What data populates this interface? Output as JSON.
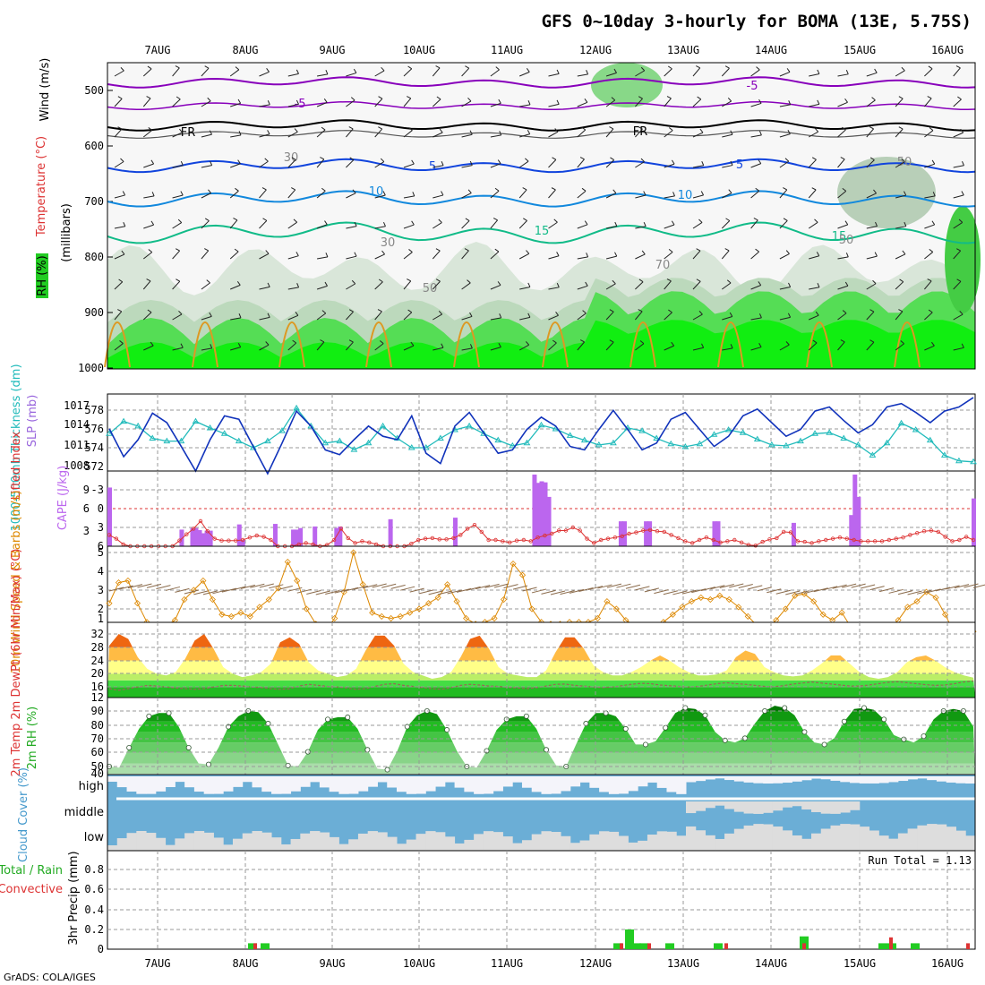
{
  "chart_data": {
    "type": "meteogram",
    "title": "GFS 0~10day 3-hourly for BOMA (13E, 5.75S)",
    "footer": "GrADS: COLA/IGES",
    "date_labels": [
      "7AUG",
      "8AUG",
      "9AUG",
      "10AUG",
      "11AUG",
      "12AUG",
      "13AUG",
      "14AUG",
      "15AUG",
      "16AUG"
    ],
    "colors": {
      "green": "#22cc22",
      "purple": "#bb66ee",
      "teal": "#22bbbb",
      "blue": "#1133bb",
      "red": "#dd3333",
      "orange": "#dd8800",
      "cloud_blue": "#6baed6",
      "cloud_gray": "#dddddd",
      "cloud_white": "#f4f4fa"
    },
    "panels": {
      "upper_air": {
        "ylabel_wind": "Wind (m/s)",
        "ylabel_temp": "Temperature (°C)",
        "ylabel_rh": "RH (%)",
        "ylabel_p": "(millibars)",
        "yticks": [
          "500",
          "600",
          "700",
          "800",
          "900",
          "1000"
        ],
        "contour_labels": [
          "-5",
          "-5",
          "FR",
          "FR",
          "5",
          "5",
          "10",
          "10",
          "15",
          "15",
          "30",
          "50",
          "50",
          "50",
          "70",
          "30"
        ]
      },
      "thickness_slp": {
        "ylabel_left": "1000-500mb Thickness (dm)",
        "ylabel_right": "SLP (mb)",
        "left_ticks": [
          "578",
          "576",
          "574",
          "572"
        ],
        "right_ticks": [
          "1017",
          "1014",
          "1011",
          "1008"
        ],
        "thickness": [
          575.5,
          576.8,
          576.3,
          575.0,
          574.7,
          574.7,
          576.8,
          576.1,
          575.5,
          574.7,
          574.0,
          574.7,
          575.8,
          578.2,
          576.3,
          574.5,
          574.7,
          573.8,
          574.5,
          576.3,
          575.0,
          574.0,
          574.0,
          575.0,
          575.9,
          576.3,
          575.5,
          574.8,
          574.2,
          574.5,
          576.4,
          576.0,
          575.3,
          574.8,
          574.3,
          574.5,
          576.1,
          575.8,
          575.0,
          574.4,
          574.1,
          574.4,
          575.4,
          575.9,
          575.6,
          574.9,
          574.3,
          574.2,
          574.7,
          575.5,
          575.6,
          575.0,
          574.3,
          573.2,
          574.5,
          576.6,
          575.9,
          574.8,
          573.2,
          572.6,
          572.5
        ],
        "slp": [
          1013.6,
          1009.5,
          1012.0,
          1015.9,
          1014.5,
          1011.0,
          1007.4,
          1012.0,
          1015.5,
          1015.0,
          1011.0,
          1007.0,
          1011.5,
          1016.2,
          1014.0,
          1010.5,
          1009.8,
          1012.0,
          1014.0,
          1012.5,
          1012.0,
          1015.5,
          1010.0,
          1008.5,
          1014.0,
          1016.0,
          1013.0,
          1010.0,
          1010.5,
          1013.5,
          1015.3,
          1014.0,
          1011.0,
          1010.5,
          1013.5,
          1016.3,
          1013.5,
          1010.5,
          1011.5,
          1015.0,
          1016.0,
          1013.5,
          1011.0,
          1012.5,
          1015.5,
          1016.5,
          1014.5,
          1012.5,
          1013.5,
          1016.2,
          1016.8,
          1014.8,
          1013.0,
          1014.2,
          1016.8,
          1017.3,
          1016.0,
          1014.5,
          1016.2,
          1016.8,
          1018.2
        ]
      },
      "cape_li": {
        "ylabel_left": "Lifted Index",
        "ylabel_right": "CAPE (J/kg)",
        "left_ticks": [
          "-3",
          "0",
          "3",
          "6"
        ],
        "right_ticks": [
          "9",
          "6",
          "3"
        ],
        "li_zero_line": 0,
        "cape_bars": [
          11.3,
          0,
          0,
          0,
          0,
          0,
          0,
          0,
          0,
          0,
          0,
          0,
          0,
          0,
          0,
          0,
          0,
          0,
          0,
          0,
          3.2,
          0,
          0,
          3.5,
          3.5,
          3.1,
          2.5,
          3.0,
          3.0,
          0,
          0,
          0,
          0,
          0,
          0,
          0,
          4.2,
          1.2,
          0,
          0,
          0,
          0,
          0,
          0,
          0,
          0,
          4.3,
          0,
          0,
          0,
          0,
          3.2,
          3.2,
          3.5,
          0,
          0,
          0,
          3.8,
          0,
          0,
          0,
          0,
          0,
          3.5,
          3.8,
          0,
          0,
          0,
          0,
          0,
          0,
          0,
          0,
          0,
          0,
          0,
          0,
          0,
          5.2,
          0,
          0,
          0,
          0,
          0,
          0,
          0,
          0,
          0,
          0,
          0,
          0,
          0,
          0,
          0,
          0,
          0,
          5.5,
          0,
          0,
          0,
          0,
          0,
          0,
          0,
          0,
          0,
          0,
          0,
          0,
          0,
          0,
          0,
          0,
          0,
          0,
          0,
          0,
          0,
          13.8,
          12.2,
          12.5,
          12.3,
          9.5,
          0,
          0,
          0,
          0,
          0,
          0,
          0,
          0,
          0,
          0,
          0,
          0,
          0,
          0,
          0,
          0,
          0,
          0,
          0,
          4.8,
          4.8,
          0,
          0,
          0,
          0,
          0,
          4.8,
          4.8,
          0,
          0,
          0,
          0,
          0,
          0,
          0,
          0,
          0,
          0,
          0,
          0,
          0,
          0,
          0,
          0,
          0,
          4.8,
          4.8,
          0,
          0,
          0,
          0,
          0,
          0,
          0,
          0,
          0,
          0,
          0,
          0,
          0,
          0,
          0,
          0,
          0,
          0,
          0,
          0,
          4.5,
          0,
          0,
          0,
          0,
          0,
          0,
          0,
          0,
          0,
          0,
          0,
          0,
          0,
          0,
          0,
          6.0,
          13.8,
          9.5,
          0,
          0,
          0,
          0,
          0,
          0,
          0,
          0,
          0,
          0,
          0,
          0,
          0,
          0,
          0,
          0,
          0,
          0,
          0,
          0,
          0,
          0,
          0,
          0,
          0,
          0,
          0,
          0,
          0,
          0,
          0,
          9.2
        ],
        "li": [
          4.2,
          4.8,
          5.7,
          6.0,
          6.0,
          6.0,
          6.0,
          6.0,
          6.0,
          6.0,
          5.1,
          4.1,
          3.2,
          2.0,
          3.6,
          4.8,
          5.1,
          5.1,
          5.1,
          5.0,
          4.6,
          4.3,
          4.5,
          5.0,
          6.0,
          6.0,
          6.0,
          5.7,
          5.5,
          5.7,
          6.0,
          5.8,
          5.0,
          3.2,
          4.7,
          5.5,
          5.2,
          5.4,
          5.7,
          6.0,
          6.0,
          6.0,
          6.0,
          5.6,
          5.0,
          4.8,
          4.7,
          4.9,
          4.9,
          4.7,
          4.2,
          3.2,
          2.6,
          3.7,
          5.0,
          5.0,
          5.2,
          5.4,
          5.1,
          5.0,
          5.2,
          4.6,
          4.3,
          4.0,
          3.5,
          3.5,
          3.0,
          3.5,
          4.8,
          5.5,
          5.0,
          4.8,
          4.6,
          4.4,
          4.0,
          3.8,
          3.5,
          3.4,
          3.6,
          3.7,
          4.2,
          4.7,
          5.2,
          5.5,
          5.0,
          4.6,
          5.0,
          5.4,
          5.2,
          5.0,
          5.4,
          5.8,
          5.9,
          5.3,
          4.9,
          4.7,
          3.7,
          3.8,
          5.2,
          5.3,
          5.5,
          5.2,
          5.0,
          4.8,
          4.6,
          4.8,
          5.0,
          5.2,
          5.2,
          5.2,
          5.2,
          5.0,
          4.8,
          4.6,
          4.2,
          3.9,
          3.6,
          3.5,
          3.7,
          4.5,
          5.2,
          5.0,
          4.5,
          5.0
        ]
      },
      "wind10m": {
        "ylabel": "10m Wind Speed & Barbs (m/s)",
        "yticks": [
          "5",
          "4",
          "3",
          "2",
          "1"
        ],
        "speed": [
          2.3,
          3.4,
          3.5,
          2.3,
          1.3,
          0.8,
          1.1,
          1.4,
          2.5,
          3.0,
          3.5,
          2.5,
          1.7,
          1.6,
          1.8,
          1.6,
          2.1,
          2.5,
          3.1,
          4.5,
          3.5,
          2.0,
          1.2,
          0.8,
          1.5,
          2.9,
          5.0,
          3.3,
          1.8,
          1.6,
          1.5,
          1.6,
          1.8,
          2.0,
          2.3,
          2.6,
          3.3,
          2.4,
          1.5,
          1.2,
          1.3,
          1.5,
          2.5,
          4.4,
          3.8,
          2.0,
          1.3,
          1.2,
          1.2,
          1.3,
          1.3,
          1.3,
          1.5,
          2.4,
          2.0,
          1.4,
          1.1,
          1.0,
          1.1,
          1.3,
          1.7,
          2.1,
          2.4,
          2.6,
          2.5,
          2.7,
          2.5,
          2.1,
          1.6,
          1.1,
          1.0,
          1.4,
          2.0,
          2.7,
          2.8,
          2.4,
          1.7,
          1.4,
          1.8,
          1.0,
          1.0,
          1.0,
          0.9,
          1.0,
          1.4,
          2.1,
          2.4,
          2.9,
          2.6,
          1.7,
          0.7,
          0.6,
          0.8
        ]
      },
      "temp2m": {
        "ylabel": "2m Temp 2m DewPt (6hr Min/Max) (°C)",
        "yticks": [
          "32",
          "28",
          "24",
          "20",
          "16",
          "12"
        ],
        "temp": [
          28.5,
          32.0,
          30.5,
          25.0,
          21.5,
          20.0,
          19.5,
          20.5,
          24.5,
          30.0,
          32.0,
          27.5,
          22.0,
          20.0,
          19.0,
          19.5,
          20.5,
          23.0,
          29.5,
          31.0,
          29.0,
          23.5,
          21.0,
          20.0,
          19.0,
          19.5,
          21.5,
          27.0,
          31.5,
          31.5,
          28.5,
          23.0,
          20.5,
          19.5,
          18.5,
          19.0,
          20.5,
          25.0,
          30.5,
          31.5,
          27.5,
          22.0,
          20.0,
          19.5,
          19.0,
          19.0,
          21.0,
          26.5,
          31.0,
          31.0,
          27.5,
          22.5,
          20.5,
          19.5,
          19.5,
          20.5,
          22.0,
          24.0,
          25.5,
          24.0,
          22.0,
          20.5,
          19.5,
          19.5,
          19.8,
          21.0,
          25.0,
          27.0,
          26.0,
          22.0,
          20.5,
          19.5,
          19.2,
          19.5,
          21.0,
          23.0,
          25.5,
          25.5,
          23.0,
          20.5,
          19.0,
          18.5,
          19.0,
          20.5,
          23.5,
          25.0,
          25.5,
          24.0,
          22.0,
          20.5,
          19.5,
          18.8
        ],
        "dewpt": [
          15.5,
          15.0,
          15.5,
          16.0,
          16.5,
          16.3,
          16.0,
          15.7,
          15.5,
          15.3,
          15.5,
          16.0,
          16.5,
          16.5,
          16.3,
          16.0,
          15.8,
          15.5,
          15.3,
          15.5,
          16.3,
          16.8,
          16.5,
          16.2,
          16.0,
          15.7,
          15.3,
          15.5,
          16.2,
          16.8,
          17.0,
          16.5,
          16.2,
          15.8,
          15.5,
          15.3,
          15.8,
          16.5,
          16.8,
          16.6,
          16.3,
          16.2,
          15.9,
          15.7,
          15.5,
          15.8,
          16.3,
          16.8,
          16.9,
          16.5,
          16.3,
          16.0,
          15.8,
          16.0,
          16.4,
          16.8,
          17.1,
          17.0,
          16.6,
          16.4,
          16.2,
          16.0,
          16.2,
          16.6,
          17.0,
          17.3,
          17.0,
          16.8,
          16.5,
          16.2,
          16.1,
          16.4,
          16.9,
          17.2,
          17.5,
          17.2,
          16.9,
          16.6,
          16.3,
          16.3,
          16.6,
          17.0,
          17.4,
          17.6,
          17.3,
          17.0,
          16.7,
          16.5,
          16.6,
          17.0,
          17.5,
          17.8
        ]
      },
      "rh2m": {
        "ylabel": "2m RH (%)",
        "yticks": [
          "90",
          "80",
          "70",
          "60",
          "50",
          "40"
        ],
        "rh": [
          37,
          36,
          55,
          73,
          85,
          88,
          88,
          75,
          55,
          40,
          39,
          55,
          75,
          85,
          90,
          89,
          78,
          58,
          38,
          37,
          51,
          72,
          82,
          84,
          84,
          73,
          53,
          35,
          34,
          52,
          75,
          86,
          90,
          87,
          72,
          52,
          37,
          36,
          52,
          72,
          82,
          85,
          85,
          73,
          53,
          38,
          37,
          58,
          78,
          88,
          88,
          85,
          73,
          58,
          58,
          61,
          74,
          88,
          93,
          92,
          86,
          70,
          62,
          60,
          64,
          78,
          90,
          95,
          93,
          86,
          70,
          60,
          58,
          64,
          80,
          92,
          93,
          91,
          82,
          67,
          63,
          60,
          66,
          82,
          90,
          92,
          90,
          75
        ]
      },
      "cloud": {
        "ylabel": "Cloud Cover (%)",
        "levels": [
          "high",
          "middle",
          "low"
        ]
      },
      "precip": {
        "ylabel": "3hr Precip (mm)",
        "legend_total": "Total / Rain",
        "legend_conv": "Convective",
        "run_total": "Run Total = 1.13",
        "yticks": [
          "0.8",
          "0.6",
          "0.4",
          "0.2",
          "0"
        ]
      }
    }
  }
}
